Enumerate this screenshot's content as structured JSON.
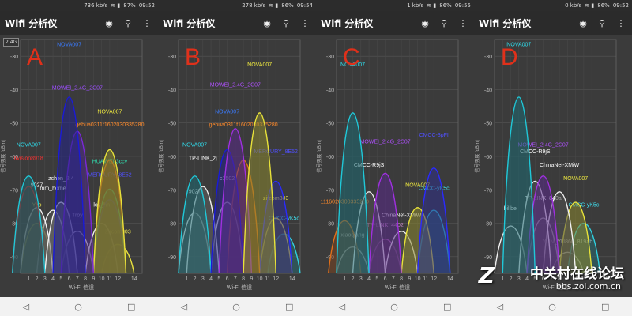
{
  "panels": [
    {
      "id": "A",
      "status": {
        "speed": "736 kb/s",
        "battery": "87%",
        "time": "09:52"
      },
      "app_title": "Wifi 分析仪",
      "band_label": "2.4G",
      "big_letter": "A",
      "networks": [
        {
          "name": "NOVA007",
          "channel": 6,
          "rssi": -28,
          "color": "#1a1ad8",
          "fill": "#23238a",
          "label_color": "#3a7bff"
        },
        {
          "name": "MOWEI_2.4G_2C07",
          "channel": 7,
          "rssi": -41,
          "color": "#7a28d8",
          "fill": "#4f2a8a",
          "label_color": "#9c4dff"
        },
        {
          "name": "NOVA007",
          "channel": 11,
          "rssi": -48,
          "color": "#e8e23a",
          "fill": "#8a8630",
          "label_color": "#f0ea40"
        },
        {
          "name": "gehua0311f1602030335280",
          "channel": 11,
          "rssi": -52,
          "color": "#e0701a",
          "fill": "#7a4420",
          "label_color": "#ff8a2a"
        },
        {
          "name": "NOVA007",
          "channel": 1,
          "rssi": -58,
          "color": "#20c8d8",
          "fill": "#1e6a72",
          "label_color": "#2fe0f0"
        },
        {
          "name": "Ilvision8918",
          "channel": 1,
          "rssi": -62,
          "color": "#d01a1a",
          "fill": "#6a2020",
          "label_color": "#ff3030"
        },
        {
          "name": "HUAWEI-3ccy",
          "channel": 11,
          "rssi": -63,
          "color": "#1ad8a0",
          "fill": "#207a5a",
          "label_color": "#30e0b0"
        },
        {
          "name": "zchen_2.4",
          "channel": 5,
          "rssi": -68,
          "color": "#f0f0f0",
          "fill": "#707070",
          "label_color": "#ffffff"
        },
        {
          "name": "MERCURY_8E52",
          "channel": 11,
          "rssi": -67,
          "color": "#2a2aff",
          "fill": "#30308a",
          "label_color": "#5050ff"
        },
        {
          "name": "9027",
          "channel": 2,
          "rssi": -70,
          "color": "#f0f0f0",
          "fill": "#606060",
          "label_color": "#ffffff"
        },
        {
          "name": "mm_home",
          "channel": 4,
          "rssi": -71,
          "color": "#f0f0f0",
          "fill": "#585858",
          "label_color": "#ffffff"
        },
        {
          "name": "loy_hn",
          "channel": 10,
          "rssi": -76,
          "color": "#f0f0f0",
          "fill": "#505050",
          "label_color": "#ffffff"
        },
        {
          "name": "Yao",
          "channel": 2,
          "rssi": -76,
          "color": "#e8e040",
          "fill": "#6a6a30",
          "label_color": "#f0e850"
        },
        {
          "name": "Zircom303",
          "channel": 12,
          "rssi": -84,
          "color": "#e8e040",
          "fill": "#606030",
          "label_color": "#f0e850"
        },
        {
          "name": "Troy",
          "channel": 7,
          "rssi": -79,
          "color": "#f0f0f0",
          "fill": "#505050",
          "label_color": "#ffffff"
        }
      ]
    },
    {
      "id": "B",
      "status": {
        "speed": "278 kb/s",
        "battery": "86%",
        "time": "09:54"
      },
      "app_title": "Wifi 分析仪",
      "band_label": "",
      "big_letter": "B",
      "networks": [
        {
          "name": "MOWEI_2.4G_2C07",
          "channel": 7,
          "rssi": -40,
          "color": "#a030e0",
          "fill": "#5a2a8a",
          "label_color": "#b050ff"
        },
        {
          "name": "NOVA007",
          "channel": 10,
          "rssi": -34,
          "color": "#e8e23a",
          "fill": "#8a8630",
          "label_color": "#f0ea40"
        },
        {
          "name": "NOVA007",
          "channel": 6,
          "rssi": -48,
          "color": "#1a1ad8",
          "fill": "#23238a",
          "label_color": "#3a7bff"
        },
        {
          "name": "gehua0311f1602030335280",
          "channel": 8,
          "rssi": -52,
          "color": "#e0701a",
          "fill": "#7a4420",
          "label_color": "#ff8a2a"
        },
        {
          "name": "NOVA007",
          "channel": 2,
          "rssi": -58,
          "color": "#20c8d8",
          "fill": "#1e6a72",
          "label_color": "#2fe0f0"
        },
        {
          "name": "TP-LINK_zj",
          "channel": 3,
          "rssi": -62,
          "color": "#f0f0f0",
          "fill": "#606060",
          "label_color": "#ffffff"
        },
        {
          "name": "MERCURY_8E52",
          "channel": 12,
          "rssi": -60,
          "color": "#2a2aff",
          "fill": "#30308a",
          "label_color": "#5050ff"
        },
        {
          "name": "zircom303",
          "channel": 12,
          "rssi": -74,
          "color": "#e8e040",
          "fill": "#606030",
          "label_color": "#f0e850"
        },
        {
          "name": "c1502",
          "channel": 6,
          "rssi": -68,
          "color": "#f0f0f0",
          "fill": "#555555",
          "label_color": "#ffffff"
        },
        {
          "name": "9027",
          "channel": 2,
          "rssi": -72,
          "color": "#f0f0f0",
          "fill": "#555555",
          "label_color": "#ffffff"
        },
        {
          "name": "CMCC-yK5c",
          "channel": 13,
          "rssi": -80,
          "color": "#30d0e0",
          "fill": "#2a6a70",
          "label_color": "#40e0f0"
        }
      ]
    },
    {
      "id": "C",
      "status": {
        "speed": "1 kb/s",
        "battery": "86%",
        "time": "09:55"
      },
      "app_title": "Wifi 分析仪",
      "band_label": "",
      "big_letter": "C",
      "networks": [
        {
          "name": "NOVA007",
          "channel": 2,
          "rssi": -34,
          "color": "#20c8d8",
          "fill": "#1e6a72",
          "label_color": "#2fe0f0"
        },
        {
          "name": "MOWEI_2.4G_2C07",
          "channel": 6,
          "rssi": -57,
          "color": "#a030e0",
          "fill": "#5a2a8a",
          "label_color": "#b050ff"
        },
        {
          "name": "CMCC-3pFI",
          "channel": 12,
          "rssi": -55,
          "color": "#2a2aff",
          "fill": "#30308a",
          "label_color": "#5050ff"
        },
        {
          "name": "CMCC-R9jS",
          "channel": 4,
          "rssi": -64,
          "color": "#f0f0f0",
          "fill": "#505050",
          "label_color": "#ffffff"
        },
        {
          "name": "NOVA007",
          "channel": 10,
          "rssi": -70,
          "color": "#e8e23a",
          "fill": "#8a8630",
          "label_color": "#f0ea40"
        },
        {
          "name": "CMCC-yK5c",
          "channel": 12,
          "rssi": -71,
          "color": "#30d0e0",
          "fill": "#2a6a70",
          "label_color": "#40e0f0"
        },
        {
          "name": "1116020300335280",
          "channel": 1,
          "rssi": -75,
          "color": "#e0701a",
          "fill": "#7a4420",
          "label_color": "#ff8a2a"
        },
        {
          "name": "ChinaNet-XMiW",
          "channel": 8,
          "rssi": -79,
          "color": "#f0f0f0",
          "fill": "#505050",
          "label_color": "#ffffff"
        },
        {
          "name": "TP-LINK_4402",
          "channel": 6,
          "rssi": -82,
          "color": "#a060a0",
          "fill": "#503050",
          "label_color": "#c080c0"
        },
        {
          "name": "xiaoqiang",
          "channel": 2,
          "rssi": -85,
          "color": "#f0f0f0",
          "fill": "#505050",
          "label_color": "#ffffff"
        }
      ]
    },
    {
      "id": "D",
      "status": {
        "speed": "0 kb/s",
        "battery": "86%",
        "time": "09:52"
      },
      "app_title": "Wifi 分析仪",
      "band_label": "",
      "big_letter": "D",
      "networks": [
        {
          "name": "NOVA007",
          "channel": 3,
          "rssi": -28,
          "color": "#20c8d8",
          "fill": "#1e6a72",
          "label_color": "#2fe0f0"
        },
        {
          "name": "MOWEI_2.4G_2C07",
          "channel": 6,
          "rssi": -58,
          "color": "#a030e0",
          "fill": "#5a2a8a",
          "label_color": "#b050ff"
        },
        {
          "name": "CMCC-R9jS",
          "channel": 5,
          "rssi": -60,
          "color": "#f0f0f0",
          "fill": "#505050",
          "label_color": "#ffffff"
        },
        {
          "name": "ChinaNet-XMiW",
          "channel": 8,
          "rssi": -64,
          "color": "#f0f0f0",
          "fill": "#505050",
          "label_color": "#ffffff"
        },
        {
          "name": "NOVA007",
          "channel": 10,
          "rssi": -68,
          "color": "#e8e23a",
          "fill": "#8a8630",
          "label_color": "#f0ea40"
        },
        {
          "name": "TP-LINK_840a",
          "channel": 6,
          "rssi": -74,
          "color": "#f0f0f0",
          "fill": "#505050",
          "label_color": "#ffffff"
        },
        {
          "name": "CMCC-yK5c",
          "channel": 11,
          "rssi": -76,
          "color": "#30d0e0",
          "fill": "#2a6a70",
          "label_color": "#40e0f0"
        },
        {
          "name": "bilibei",
          "channel": 2,
          "rssi": -77,
          "color": "#f0f0f0",
          "fill": "#505050",
          "label_color": "#ffffff"
        },
        {
          "name": "YUN_YU860_819ab",
          "channel": 9,
          "rssi": -87,
          "color": "#f0f0f0",
          "fill": "#505050",
          "label_color": "#ffffff"
        }
      ]
    }
  ],
  "chart": {
    "y_ticks": [
      "-30",
      "-40",
      "-50",
      "-60",
      "-70",
      "-80",
      "-90"
    ],
    "x_ticks": [
      "1",
      "2",
      "3",
      "4",
      "5",
      "6",
      "7",
      "8",
      "9",
      "10",
      "11",
      "12",
      "",
      "14"
    ],
    "xlabel": "Wi-Fi 信道",
    "ylabel": "信号强度 [dBm]"
  },
  "nav": {
    "back": "◁",
    "home": "○",
    "recents": "□"
  },
  "watermark": {
    "text": "中关村在线论坛",
    "url": "bbs.zol.com.cn",
    "logo": "Z"
  },
  "chart_data": [
    {
      "type": "area",
      "title": "",
      "xlabel": "Wi-Fi 信道",
      "ylabel": "信号强度 [dBm]",
      "ylim": [
        -95,
        -25
      ],
      "x": [
        1,
        14
      ],
      "series": [
        {
          "name": "NOVA007",
          "x": 6,
          "y": -28
        },
        {
          "name": "MOWEI_2.4G_2C07",
          "x": 7,
          "y": -41
        },
        {
          "name": "NOVA007",
          "x": 11,
          "y": -48
        },
        {
          "name": "gehua0311f1602030335280",
          "x": 11,
          "y": -52
        },
        {
          "name": "NOVA007",
          "x": 1,
          "y": -58
        },
        {
          "name": "Ilvision8918",
          "x": 1,
          "y": -62
        },
        {
          "name": "HUAWEI-3ccy",
          "x": 11,
          "y": -63
        },
        {
          "name": "zchen_2.4",
          "x": 5,
          "y": -68
        },
        {
          "name": "MERCURY_8E52",
          "x": 11,
          "y": -67
        },
        {
          "name": "9027",
          "x": 2,
          "y": -70
        },
        {
          "name": "mm_home",
          "x": 4,
          "y": -71
        },
        {
          "name": "loy_hn",
          "x": 10,
          "y": -76
        },
        {
          "name": "Yao",
          "x": 2,
          "y": -76
        },
        {
          "name": "Zircom303",
          "x": 12,
          "y": -84
        },
        {
          "name": "Troy",
          "x": 7,
          "y": -79
        }
      ]
    },
    {
      "type": "area",
      "title": "",
      "xlabel": "Wi-Fi 信道",
      "ylabel": "信号强度 [dBm]",
      "ylim": [
        -95,
        -25
      ],
      "x": [
        1,
        14
      ],
      "series": [
        {
          "name": "MOWEI_2.4G_2C07",
          "x": 7,
          "y": -40
        },
        {
          "name": "NOVA007",
          "x": 10,
          "y": -34
        },
        {
          "name": "NOVA007",
          "x": 6,
          "y": -48
        },
        {
          "name": "gehua0311f1602030335280",
          "x": 8,
          "y": -52
        },
        {
          "name": "NOVA007",
          "x": 2,
          "y": -58
        },
        {
          "name": "TP-LINK_zj",
          "x": 3,
          "y": -62
        },
        {
          "name": "MERCURY_8E52",
          "x": 12,
          "y": -60
        },
        {
          "name": "zircom303",
          "x": 12,
          "y": -74
        },
        {
          "name": "c1502",
          "x": 6,
          "y": -68
        },
        {
          "name": "9027",
          "x": 2,
          "y": -72
        },
        {
          "name": "CMCC-yK5c",
          "x": 13,
          "y": -80
        }
      ]
    },
    {
      "type": "area",
      "title": "",
      "xlabel": "Wi-Fi 信道",
      "ylabel": "信号强度 [dBm]",
      "ylim": [
        -95,
        -25
      ],
      "x": [
        1,
        14
      ],
      "series": [
        {
          "name": "NOVA007",
          "x": 2,
          "y": -34
        },
        {
          "name": "MOWEI_2.4G_2C07",
          "x": 6,
          "y": -57
        },
        {
          "name": "CMCC-3pFI",
          "x": 12,
          "y": -55
        },
        {
          "name": "CMCC-R9jS",
          "x": 4,
          "y": -64
        },
        {
          "name": "NOVA007",
          "x": 10,
          "y": -70
        },
        {
          "name": "CMCC-yK5c",
          "x": 12,
          "y": -71
        },
        {
          "name": "1116020300335280",
          "x": 1,
          "y": -75
        },
        {
          "name": "ChinaNet-XMiW",
          "x": 8,
          "y": -79
        },
        {
          "name": "TP-LINK_4402",
          "x": 6,
          "y": -82
        },
        {
          "name": "xiaoqiang",
          "x": 2,
          "y": -85
        }
      ]
    },
    {
      "type": "area",
      "title": "",
      "xlabel": "Wi-Fi 信道",
      "ylabel": "信号强度 [dBm]",
      "ylim": [
        -95,
        -25
      ],
      "x": [
        1,
        14
      ],
      "series": [
        {
          "name": "NOVA007",
          "x": 3,
          "y": -28
        },
        {
          "name": "MOWEI_2.4G_2C07",
          "x": 6,
          "y": -58
        },
        {
          "name": "CMCC-R9jS",
          "x": 5,
          "y": -60
        },
        {
          "name": "ChinaNet-XMiW",
          "x": 8,
          "y": -64
        },
        {
          "name": "NOVA007",
          "x": 10,
          "y": -68
        },
        {
          "name": "TP-LINK_840a",
          "x": 6,
          "y": -74
        },
        {
          "name": "CMCC-yK5c",
          "x": 11,
          "y": -76
        },
        {
          "name": "bilibei",
          "x": 2,
          "y": -77
        },
        {
          "name": "YUN_YU860_819ab",
          "x": 9,
          "y": -87
        }
      ]
    }
  ]
}
